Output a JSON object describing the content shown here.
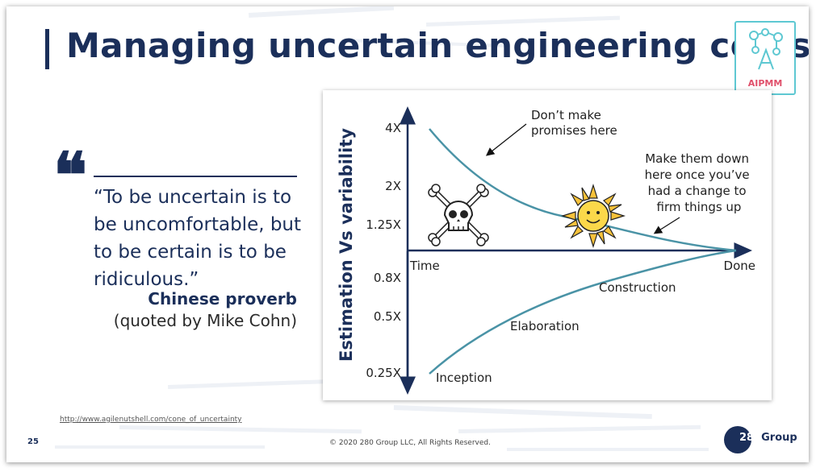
{
  "slide": {
    "title": "Managing uncertain engineering costs",
    "logo_label": "AIPMM",
    "page_number": "25",
    "copyright": "© 2020 280 Group LLC, All Rights Reserved.",
    "source_link": "http://www.agilenutshell.com/cone_of_uncertainty",
    "footer_logo_number": "280",
    "footer_logo_word": "Group"
  },
  "quote": {
    "mark": "❝",
    "text": "“To be uncertain is to be uncomfortable, but to be certain is to be ridiculous.”",
    "author": "Chinese proverb",
    "source": "(quoted by Mike Cohn)"
  },
  "colors": {
    "navy": "#1b2f5a",
    "teal": "#4a93a6",
    "accent_pink": "#e0506b",
    "logo_border": "#5ec8d2"
  },
  "chart_data": {
    "type": "line",
    "title": "",
    "ylabel": "Estimation Vs variability",
    "xlabel": "",
    "y_ticks": [
      "4X",
      "2X",
      "1.25X",
      "0.8X",
      "0.5X",
      "0.25X"
    ],
    "x_start_label": "Time",
    "x_end_label": "Done",
    "phases": [
      "Inception",
      "Elaboration",
      "Construction"
    ],
    "annotations": [
      "Don’t make promises here",
      "Make them down here once you’ve had a change to firm things up"
    ],
    "series": [
      {
        "name": "upper bound",
        "values": [
          4,
          1.25,
          1
        ]
      },
      {
        "name": "lower bound",
        "values": [
          0.25,
          0.8,
          1
        ]
      }
    ]
  }
}
